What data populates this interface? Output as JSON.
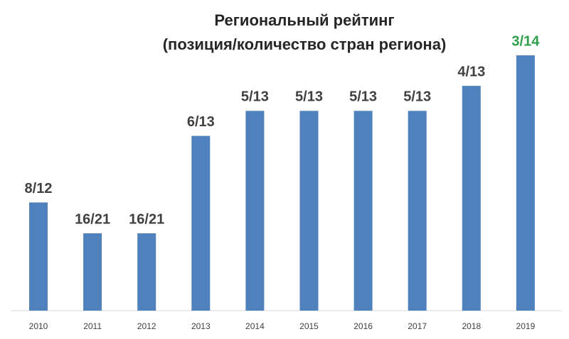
{
  "chart_data": {
    "type": "bar",
    "title": "Региональный рейтинг",
    "subtitle": "(позиция/количество стран региона)",
    "categories": [
      "2010",
      "2011",
      "2012",
      "2013",
      "2014",
      "2015",
      "2016",
      "2017",
      "2018",
      "2019"
    ],
    "values": [
      0.333,
      0.238,
      0.238,
      0.538,
      0.615,
      0.615,
      0.615,
      0.615,
      0.692,
      0.786
    ],
    "value_labels": [
      "8/12",
      "16/21",
      "16/21",
      "6/13",
      "5/13",
      "5/13",
      "5/13",
      "5/13",
      "4/13",
      "3/14"
    ],
    "value_label_colors": [
      "#404040",
      "#404040",
      "#404040",
      "#404040",
      "#404040",
      "#404040",
      "#404040",
      "#404040",
      "#404040",
      "#2e9e4a"
    ],
    "color": "#4f81bd"
  }
}
